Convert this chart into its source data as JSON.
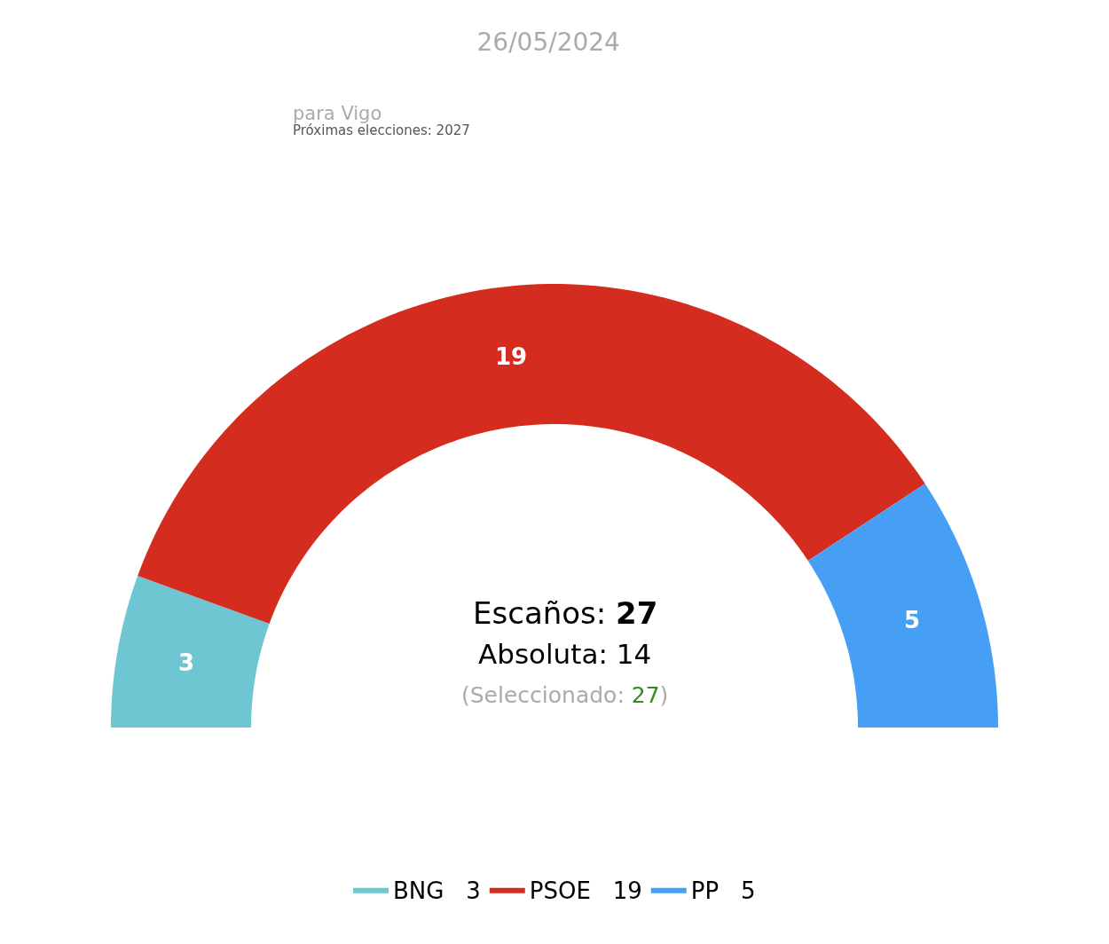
{
  "chart_data": {
    "type": "donut",
    "title": "26/05/2024",
    "subtitle": "para Vigo",
    "categories": [
      "BNG",
      "PSOE",
      "PP"
    ],
    "values": [
      3,
      19,
      5
    ],
    "colors": [
      "#6ec6d2",
      "#d42d20",
      "#469ff5"
    ],
    "data_labels": true,
    "legend": "bottom",
    "value_labels": [
      "3",
      "19",
      "5"
    ],
    "annotations": [
      "Próximas elecciones: 2027",
      "Escaños: 27",
      "Absoluta: 14",
      "(Seleccionado: 27)"
    ]
  }
}
